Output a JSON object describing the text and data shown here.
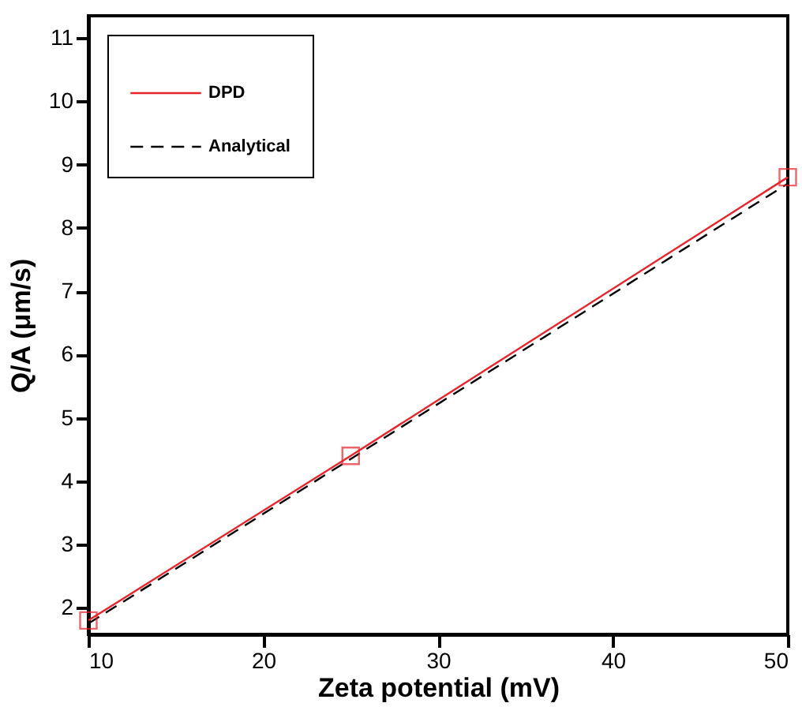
{
  "chart_data": {
    "type": "line",
    "xlabel": "Zeta potential (mV)",
    "ylabel": "Q/A (μm/s)",
    "x": [
      10,
      25,
      50
    ],
    "series": [
      {
        "name": "DPD",
        "color": "#e8232a",
        "values": [
          1.8,
          4.4,
          8.8
        ],
        "marker": "square",
        "line_style": "solid"
      },
      {
        "name": "Analytical",
        "color": "#000000",
        "values": [
          1.75,
          4.35,
          8.7
        ],
        "marker": "none",
        "line_style": "dashed"
      }
    ],
    "xlim": [
      10,
      50
    ],
    "xticks": [
      10,
      20,
      30,
      40,
      50
    ],
    "ylim": [
      1.58,
      11.35
    ],
    "yticks": [
      2,
      3,
      4,
      5,
      6,
      7,
      8,
      9,
      10,
      11
    ],
    "grid": false,
    "legend": "top left"
  }
}
